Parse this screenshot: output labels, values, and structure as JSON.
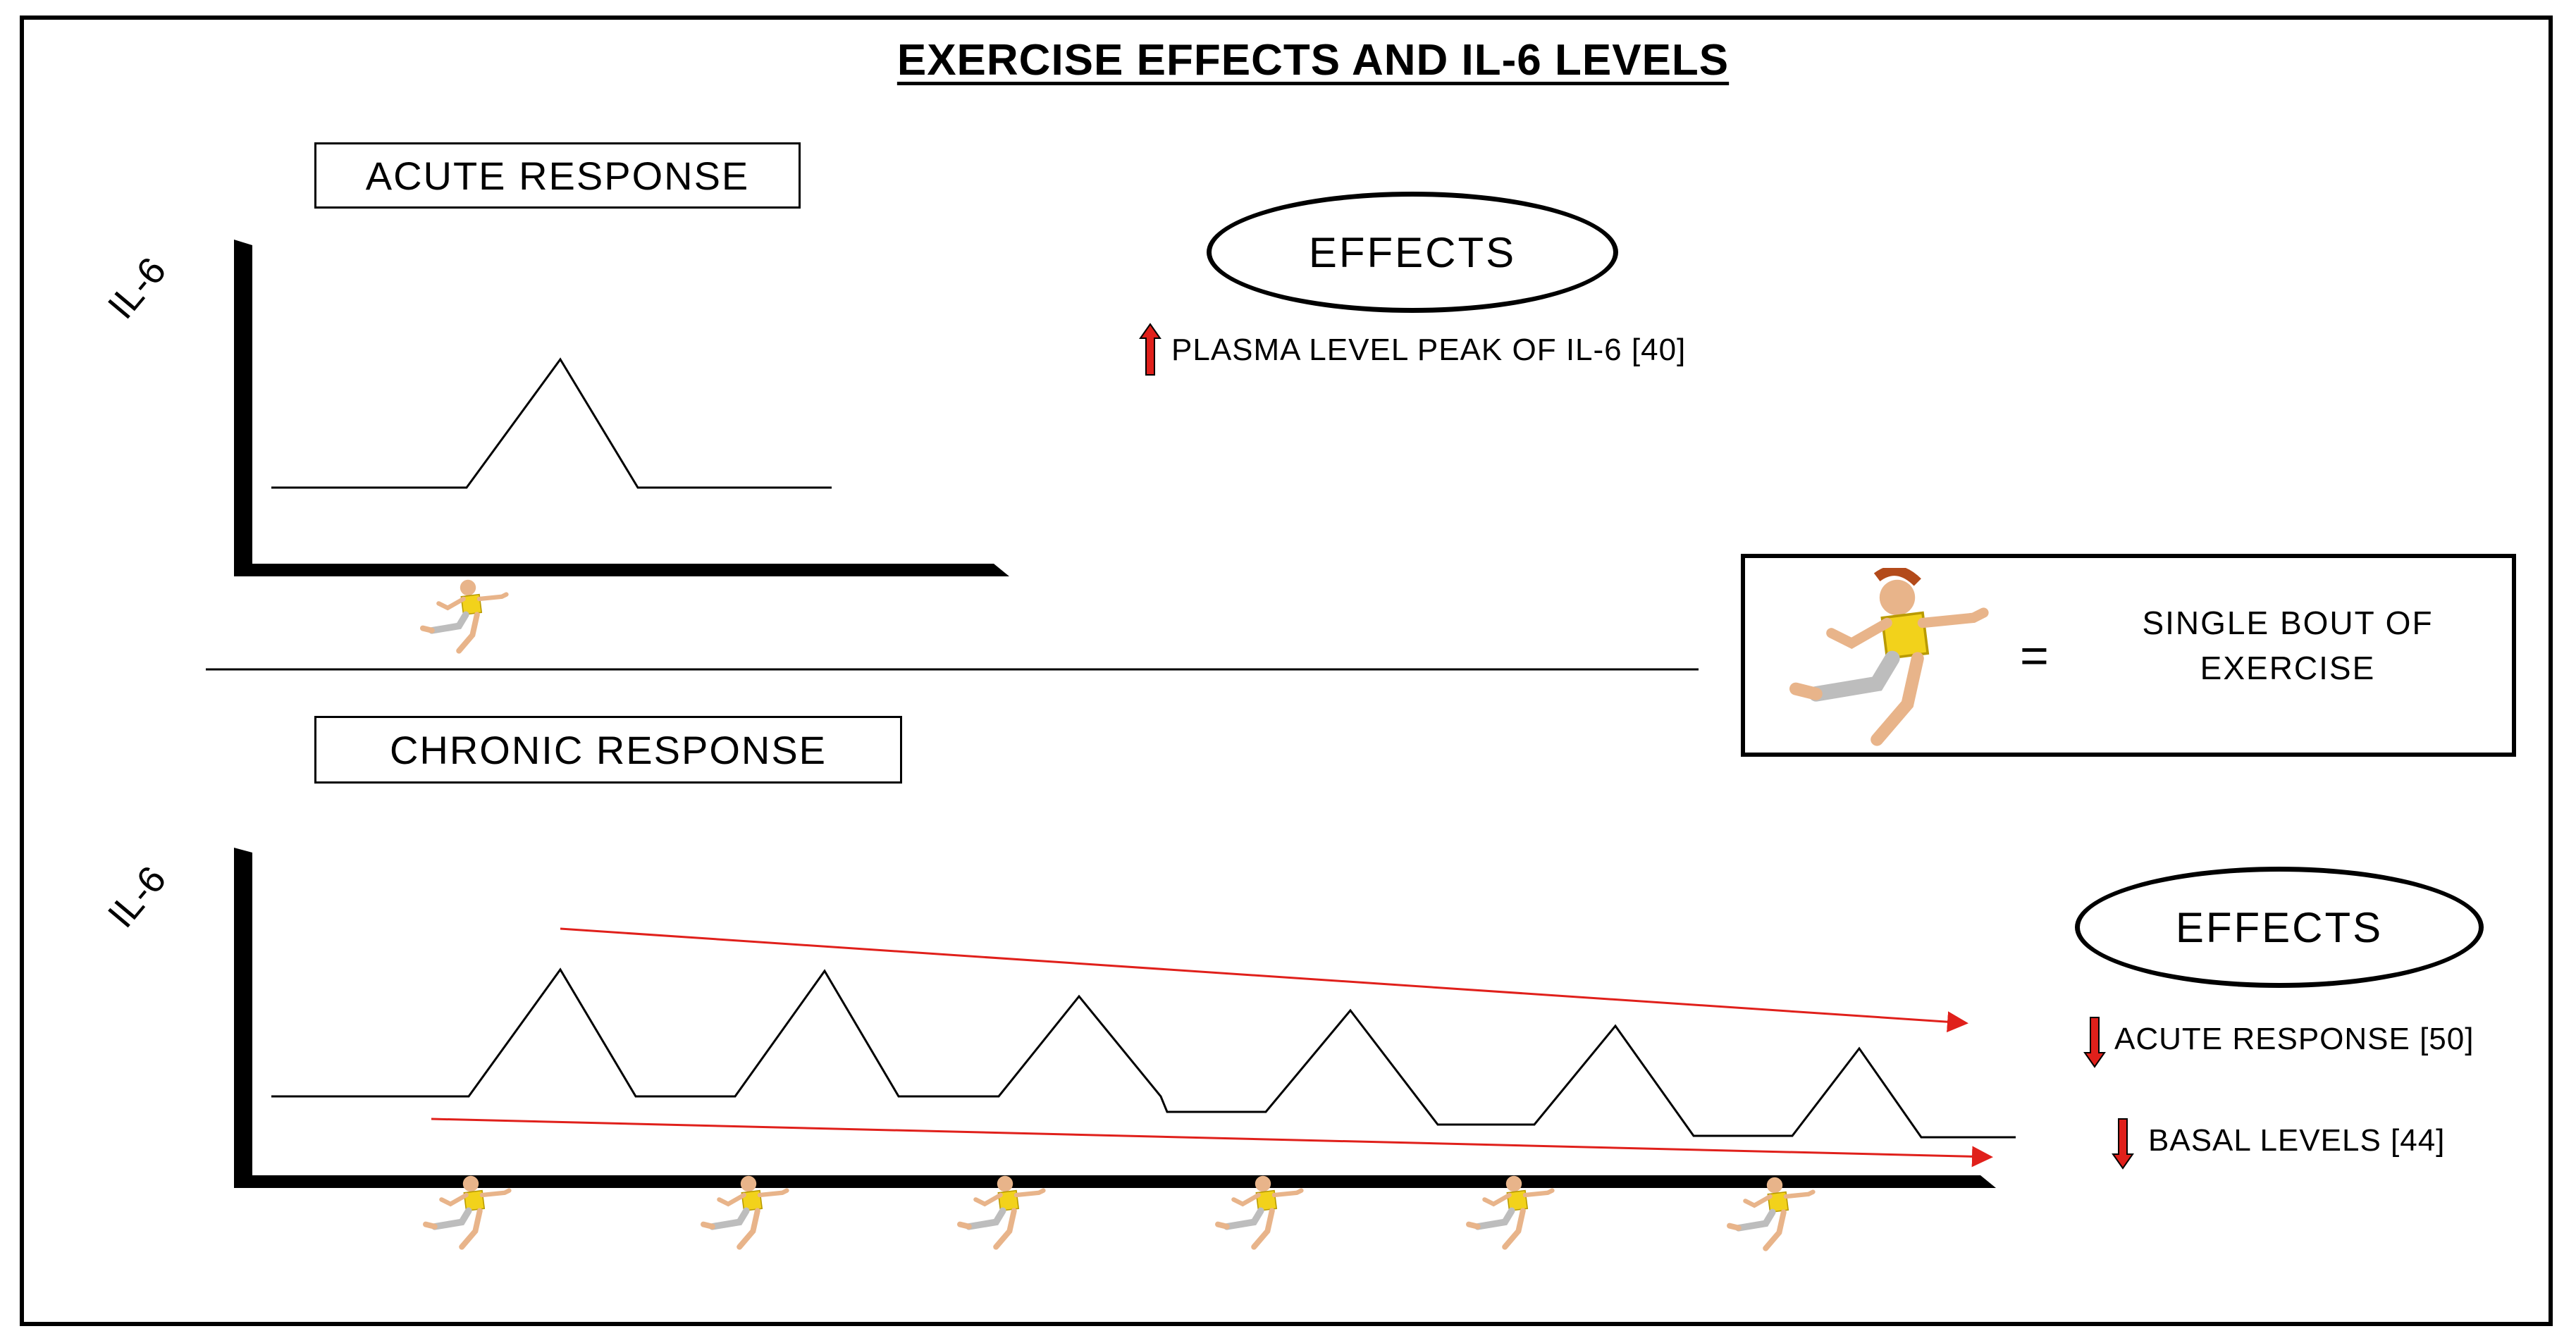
{
  "title": "EXERCISE EFFECTS AND IL-6 LEVELS",
  "acute": {
    "label": "ACUTE RESPONSE",
    "y_axis_label": "IL-6",
    "effects_title": "EFFECTS",
    "effects": [
      {
        "direction": "up",
        "text": "PLASMA LEVEL PEAK OF IL-6 [40]"
      }
    ]
  },
  "chronic": {
    "label": "CHRONIC RESPONSE",
    "y_axis_label": "IL-6",
    "effects_title": "EFFECTS",
    "effects": [
      {
        "direction": "down",
        "text": "ACUTE RESPONSE [50]"
      },
      {
        "direction": "down",
        "text": "BASAL LEVELS [44]"
      }
    ]
  },
  "legend": {
    "icon": "runner-icon",
    "equals": "=",
    "text": "SINGLE BOUT OF EXERCISE"
  },
  "colors": {
    "arrow_red": "#e0201b",
    "line": "#000000"
  }
}
